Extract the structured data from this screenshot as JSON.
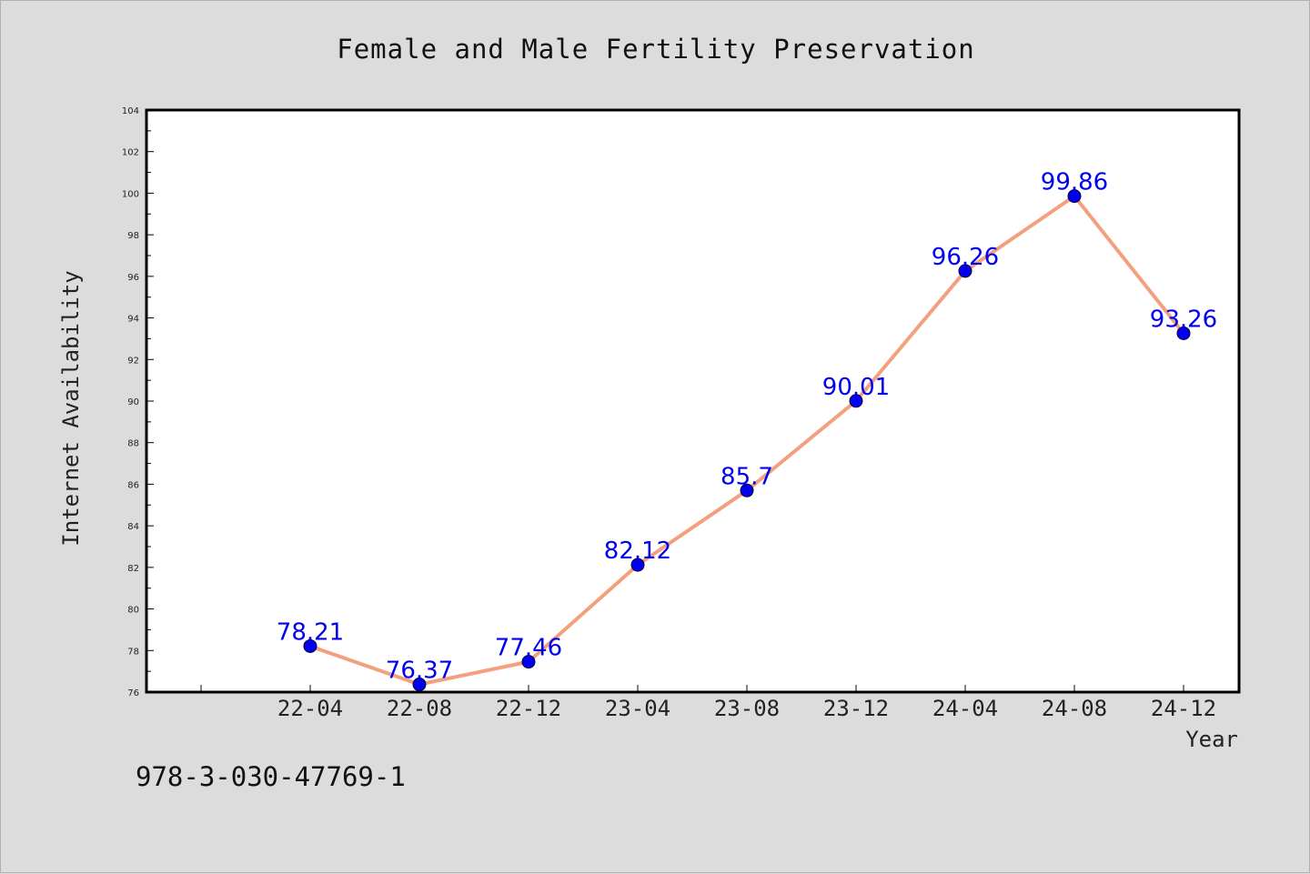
{
  "chart_data": {
    "type": "line",
    "title": "Female and Male Fertility Preservation",
    "xlabel": "Year",
    "ylabel": "Internet Availability",
    "categories": [
      "22-04",
      "22-08",
      "22-12",
      "23-04",
      "23-08",
      "23-12",
      "24-04",
      "24-08",
      "24-12"
    ],
    "series": [
      {
        "values": [
          78.21,
          76.37,
          77.46,
          82.12,
          85.7,
          90.01,
          96.26,
          99.86,
          93.26
        ],
        "labels": [
          "78.21",
          "76.37",
          "77.46",
          "82.12",
          "85.7",
          "90.01",
          "96.26",
          "99.86",
          "93.26"
        ],
        "line_color": "#f4a07f",
        "marker_color": "#0000ee"
      }
    ],
    "ylim": [
      76,
      104
    ],
    "yticks": [
      "76",
      "78",
      "80",
      "82",
      "84",
      "86",
      "88",
      "90",
      "92",
      "94",
      "96",
      "98",
      "100",
      "102",
      "104"
    ],
    "grid": false,
    "legend": "none"
  },
  "footer": {
    "isbn": "978-3-030-47769-1"
  }
}
